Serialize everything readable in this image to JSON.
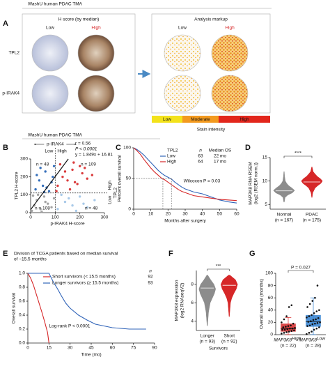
{
  "panel_a": {
    "label": "A",
    "header": "WashU human PDAC TMA",
    "left_title": "H score (by median)",
    "right_title": "Analysis markup",
    "columns": [
      "Low",
      "High"
    ],
    "rows": [
      "TPL2",
      "p-IRAK4"
    ],
    "intensity_levels": [
      "Low",
      "Moderate",
      "High"
    ],
    "intensity_colors": [
      "#f3e21b",
      "#f39a1f",
      "#e2261c"
    ],
    "intensity_title": "Stain intensity"
  },
  "header_b": "WashU human PDAC TMA",
  "chart_data": [
    {
      "type": "scatter",
      "label": "B",
      "xlabel": "p-IRAK4 H-score",
      "ylabel": "TPL2 H-score",
      "xlim": [
        0,
        300
      ],
      "ylim": [
        0,
        300
      ],
      "xticks": [
        0,
        100,
        200,
        300
      ],
      "yticks": [
        0,
        100,
        200,
        300
      ],
      "series": [
        {
          "color": "#d62728",
          "x": [
            110,
            130,
            150,
            170,
            190,
            210,
            230,
            120,
            160,
            200,
            140,
            180,
            220,
            250,
            105,
            175
          ],
          "values": [
            150,
            200,
            180,
            240,
            160,
            220,
            190,
            270,
            130,
            260,
            230,
            170,
            250,
            210,
            120,
            280
          ]
        },
        {
          "color": "#1f5fb4",
          "x": [
            20,
            35,
            50,
            60,
            75,
            90,
            40,
            65,
            85,
            25,
            55,
            95
          ],
          "values": [
            130,
            180,
            150,
            230,
            120,
            200,
            250,
            140,
            170,
            210,
            115,
            260
          ]
        },
        {
          "color": "#9a9a9a",
          "x": [
            5,
            15,
            25,
            40,
            55,
            70,
            85,
            30,
            60,
            95,
            10,
            45
          ],
          "values": [
            10,
            40,
            70,
            20,
            90,
            50,
            30,
            100,
            60,
            80,
            95,
            5
          ]
        },
        {
          "color": "#9ec3e6",
          "x": [
            110,
            140,
            170,
            200,
            230,
            260,
            125,
            185,
            215,
            155
          ],
          "values": [
            20,
            60,
            40,
            90,
            30,
            70,
            100,
            10,
            50,
            80
          ]
        }
      ],
      "fit": {
        "slope": 1.849,
        "intercept": 16.81
      },
      "x_median": 100,
      "y_median": 110,
      "annotations": [
        "r = 0.56",
        "P < 0.0001",
        "y = 1.849x + 16.81"
      ],
      "quadrant_n": [
        "n = 48",
        "n = 109",
        "n = 108",
        "n = 48"
      ],
      "x_split": {
        "title": "p-IRAK4",
        "low": "Low",
        "high": "High"
      },
      "y_split": {
        "title": "TPL2",
        "low": "Low",
        "high": "High"
      }
    },
    {
      "type": "line",
      "label": "C",
      "xlabel": "Months after surgery",
      "ylabel": "Percent overall survival",
      "xlim": [
        0,
        60
      ],
      "ylim": [
        0,
        100
      ],
      "xticks": [
        0,
        10,
        20,
        30,
        40,
        50,
        60
      ],
      "yticks": [
        0,
        50,
        100
      ],
      "legend_title": "TPL2",
      "legend_headers": [
        "n",
        "Median OS"
      ],
      "median_level": 50,
      "x": [
        0,
        2,
        4,
        6,
        8,
        10,
        12,
        14,
        16,
        18,
        20,
        22,
        24,
        26,
        28,
        30,
        35,
        40,
        45,
        50,
        55,
        60
      ],
      "series": [
        {
          "name": "Low",
          "color": "#2f63b8",
          "n": 63,
          "median_os": 22,
          "median_os_label": "22 mo",
          "values": [
            100,
            97,
            93,
            88,
            82,
            76,
            70,
            64,
            59,
            55,
            52,
            49,
            44,
            40,
            36,
            33,
            28,
            25,
            20,
            15,
            12,
            10
          ]
        },
        {
          "name": "High",
          "color": "#d62728",
          "n": 64,
          "median_os": 17,
          "median_os_label": "17 mo",
          "values": [
            100,
            95,
            89,
            81,
            74,
            67,
            61,
            56,
            51,
            48,
            44,
            40,
            36,
            32,
            29,
            27,
            22,
            20,
            18,
            16,
            15,
            14
          ]
        }
      ],
      "annotation": "Wilcoxon P = 0.03"
    },
    {
      "type": "violin",
      "label": "D",
      "stars": "****",
      "ylabel": "MAP3K8 RNA RSEM",
      "ylabel2": "(log2 (RSEM norm.))",
      "ylim": [
        4,
        15
      ],
      "yticks": [
        5,
        10,
        15
      ],
      "categories": [
        "Normal",
        "PDAC"
      ],
      "category_n": [
        "(n = 167)",
        "(n = 175)"
      ],
      "colors": [
        "#8c8c8c",
        "#d62728"
      ],
      "violins": [
        {
          "median": 7.9,
          "y": [
            5.5,
            6.5,
            7,
            7.5,
            8,
            8.5,
            9,
            9.5,
            10,
            11,
            12
          ],
          "w": [
            0.02,
            0.1,
            0.35,
            0.8,
            1,
            0.75,
            0.45,
            0.25,
            0.12,
            0.05,
            0.02
          ]
        },
        {
          "median": 9.8,
          "y": [
            6.5,
            7.5,
            8.5,
            9,
            9.5,
            10,
            10.5,
            11,
            11.5,
            12,
            13
          ],
          "w": [
            0.02,
            0.08,
            0.3,
            0.55,
            0.85,
            1,
            0.8,
            0.5,
            0.3,
            0.12,
            0.02
          ]
        }
      ]
    },
    {
      "type": "line",
      "label": "E",
      "title": [
        "Division of TCGA patients based on median survival",
        "of ~15.5 months"
      ],
      "xlabel": "Time (mo)",
      "ylabel": "Overall survival",
      "xlim": [
        0,
        90
      ],
      "ylim": [
        0,
        1
      ],
      "xticks": [
        0,
        15,
        30,
        45,
        60,
        75,
        90
      ],
      "yticks": [
        {
          "value": 0,
          "label": "0.0"
        },
        {
          "value": 0.2,
          "label": "0.2"
        },
        {
          "value": 0.4,
          "label": "0.4"
        },
        {
          "value": 0.6,
          "label": "0.6"
        },
        {
          "value": 0.8,
          "label": "0.8"
        },
        {
          "value": 1,
          "label": "1.0"
        }
      ],
      "legend_headers": [
        "n"
      ],
      "x": [
        0,
        2,
        4,
        6,
        8,
        10,
        12,
        14,
        15,
        18,
        21,
        24,
        27,
        30,
        36,
        42,
        48,
        60,
        72,
        84
      ],
      "series": [
        {
          "name": "Short survivors (< 15.5 months)",
          "color": "#d62728",
          "n": 92,
          "values": [
            1,
            0.93,
            0.83,
            0.7,
            0.57,
            0.44,
            0.3,
            0.15,
            0,
            null,
            null,
            null,
            null,
            null,
            null,
            null,
            null,
            null,
            null,
            null
          ]
        },
        {
          "name": "Longer survivors (≥ 15.5 months)",
          "color": "#2f63b8",
          "n": 93,
          "values": [
            1,
            1,
            1,
            1,
            1,
            1,
            1,
            1,
            1,
            0.88,
            0.78,
            0.67,
            0.57,
            0.5,
            0.4,
            0.33,
            0.27,
            0.22,
            0.2,
            0.2
          ]
        }
      ],
      "annotation": "Log-rank P < 0.0001"
    },
    {
      "type": "violin",
      "label": "F",
      "stars": "***",
      "ylabel": "MAP3K8 expression",
      "ylabel2": "(log2 RNAseqV2)",
      "xlabel": "Survivors",
      "ylim": [
        3,
        9.5
      ],
      "yticks": [
        4,
        6,
        8
      ],
      "categories": [
        "Longer",
        "Short"
      ],
      "category_n": [
        "(n = 93)",
        "(n = 92)"
      ],
      "colors": [
        "#8c8c8c",
        "#d62728"
      ],
      "violins": [
        {
          "median": 7.6,
          "y": [
            3.5,
            5,
            6,
            6.5,
            7,
            7.5,
            8,
            8.5,
            9
          ],
          "w": [
            0.02,
            0.15,
            0.35,
            0.6,
            0.85,
            1,
            0.8,
            0.4,
            0.05
          ]
        },
        {
          "median": 7.9,
          "y": [
            4.5,
            6,
            6.5,
            7,
            7.5,
            8,
            8.5,
            9
          ],
          "w": [
            0.02,
            0.15,
            0.3,
            0.55,
            0.85,
            1,
            0.75,
            0.08
          ]
        }
      ]
    },
    {
      "type": "box",
      "label": "G",
      "annotation": "P = 0.027",
      "ylabel": "Overall survival (months)",
      "ylim": [
        0,
        100
      ],
      "yticks": [
        0,
        20,
        40,
        60,
        80,
        100
      ],
      "categories": [
        "MAP3K8",
        "MAP3K8"
      ],
      "category_sup": [
        "High",
        "Low"
      ],
      "category_n": [
        "(n = 22)",
        "(n = 28)"
      ],
      "colors": [
        "#d62728",
        "#2f7fd0"
      ],
      "boxes": [
        {
          "low": 0,
          "q1": 5,
          "median": 10,
          "q3": 18,
          "high": 28,
          "points": [
            2,
            3,
            4,
            5,
            6,
            7,
            8,
            8,
            9,
            10,
            10,
            11,
            12,
            13,
            14,
            15,
            18,
            20,
            25,
            30,
            45,
            48
          ]
        },
        {
          "low": 0,
          "q1": 13,
          "median": 21,
          "q3": 32,
          "high": 60,
          "points": [
            1,
            3,
            5,
            8,
            10,
            12,
            14,
            15,
            17,
            18,
            19,
            20,
            21,
            22,
            24,
            25,
            27,
            28,
            30,
            32,
            35,
            38,
            40,
            45,
            50,
            55,
            60,
            80
          ]
        }
      ]
    }
  ]
}
